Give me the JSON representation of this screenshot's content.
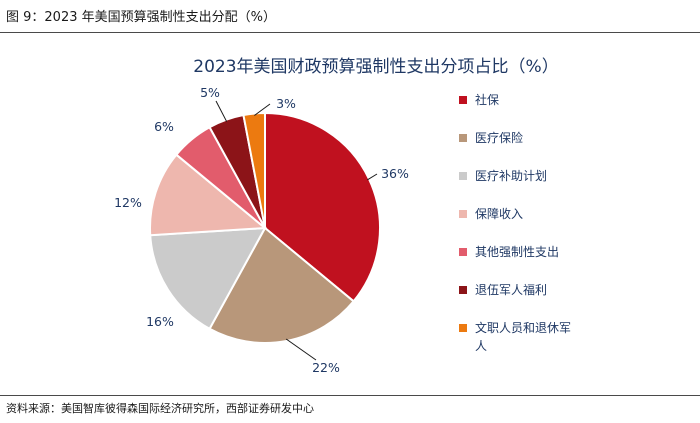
{
  "figure_caption": "图 9：2023 年美国预算强制性支出分配（%）",
  "source_note": "资料来源：美国智库彼得森国际经济研究所，西部证券研发中心",
  "chart_data": {
    "type": "pie",
    "title": "2023年美国财政预算强制性支出分项占比（%）",
    "categories": [
      "社保",
      "医疗保险",
      "医疗补助计划",
      "保障收入",
      "其他强制性支出",
      "退伍军人福利",
      "文职人员和退休军人"
    ],
    "values": [
      36,
      22,
      16,
      12,
      6,
      5,
      3
    ],
    "value_labels": [
      "36%",
      "22%",
      "16%",
      "12%",
      "6%",
      "5%",
      "3%"
    ],
    "colors": [
      "#C0111F",
      "#B8977A",
      "#CBCBCB",
      "#EEB7AE",
      "#E25C6C",
      "#8C1418",
      "#EC7A10"
    ],
    "legend_position": "right",
    "legend_wrapped_last": [
      "文职人员和退休军",
      "人"
    ]
  }
}
